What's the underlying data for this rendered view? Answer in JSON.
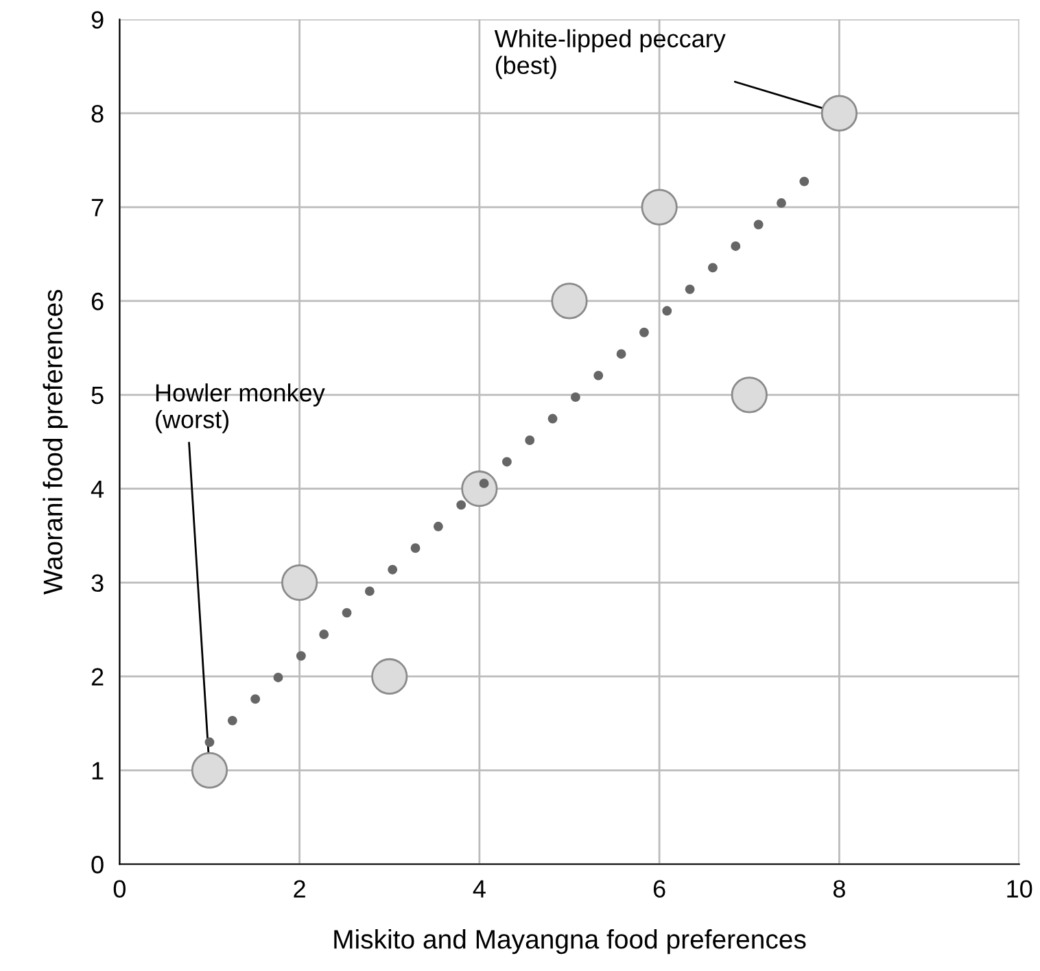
{
  "chart_data": {
    "type": "scatter",
    "xlabel": "Miskito and Mayangna food preferences",
    "ylabel": "Waorani food preferences",
    "xlim": [
      0,
      10
    ],
    "ylim": [
      0,
      9
    ],
    "xticks": [
      0,
      2,
      4,
      6,
      8,
      10
    ],
    "yticks": [
      0,
      1,
      2,
      3,
      4,
      5,
      6,
      7,
      8,
      9
    ],
    "grid": true,
    "legend": false,
    "series": [
      {
        "color": "#dcdcdc",
        "x": [
          1,
          2,
          3,
          4,
          5,
          6,
          7,
          8
        ],
        "values": [
          1,
          3,
          2,
          4,
          6,
          7,
          5,
          8
        ],
        "marker": "circle"
      },
      {
        "type": "line",
        "color": "#666666",
        "x": [
          1,
          7.75
        ],
        "values": [
          1.3,
          7.4
        ],
        "line_style": "dotted",
        "marker": "none"
      }
    ],
    "annotations": [
      {
        "text": "Howler monkey\n(worst)",
        "x": 1,
        "y": 1
      },
      {
        "text": "White-lipped peccary\n(best)",
        "x": 8,
        "y": 8
      }
    ]
  }
}
